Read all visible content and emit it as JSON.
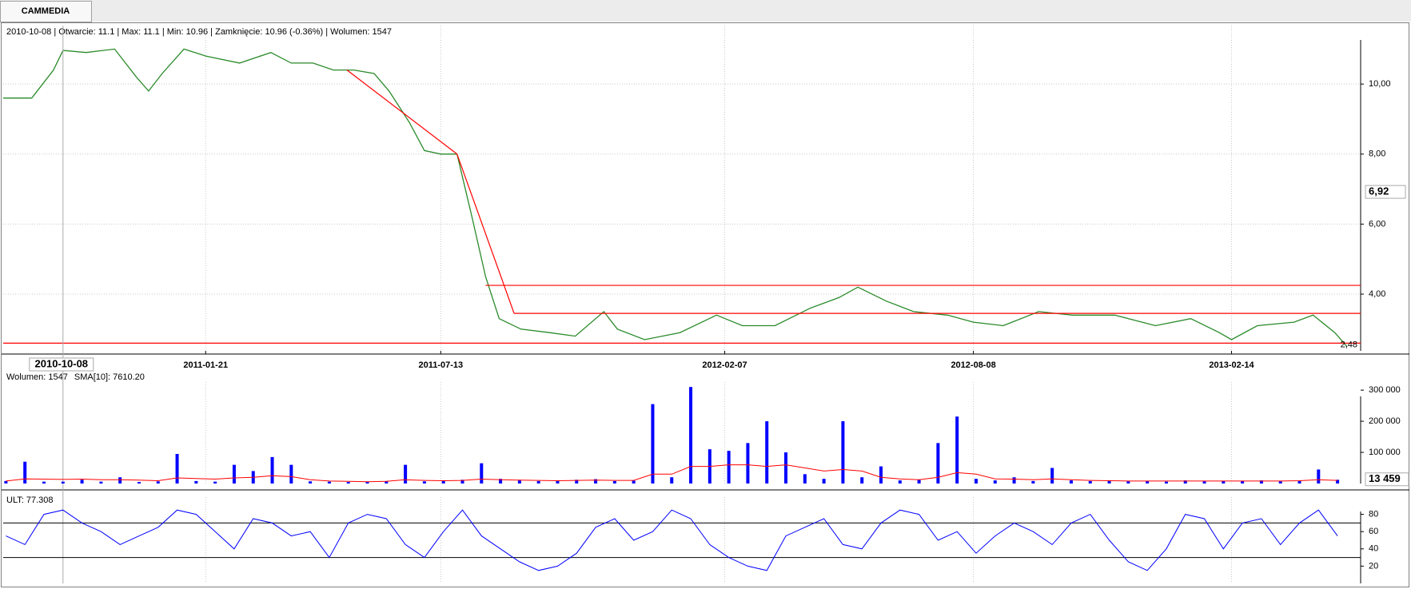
{
  "tab": "CAMMEDIA",
  "chart_data": [
    {
      "type": "line",
      "title": "2010-10-08 | Otwarcie: 11.1 | Max: 11.1 | Min: 10.96 | Zamknięcie: 10.96 (-0.36%)  | Wolumen: 1547",
      "color": "#2a8a2a",
      "x": [
        "2010-08-25",
        "2010-09-15",
        "2010-10-01",
        "2010-10-08",
        "2010-10-25",
        "2010-11-15",
        "2010-12-01",
        "2010-12-10",
        "2010-12-20",
        "2011-01-05",
        "2011-01-21",
        "2011-02-15",
        "2011-03-10",
        "2011-03-25",
        "2011-04-10",
        "2011-04-25",
        "2011-05-10",
        "2011-05-25",
        "2011-06-05",
        "2011-06-20",
        "2011-07-01",
        "2011-07-13",
        "2011-07-25",
        "2011-08-05",
        "2011-08-15",
        "2011-08-25",
        "2011-09-10",
        "2011-10-01",
        "2011-10-20",
        "2011-11-10",
        "2011-11-20",
        "2011-12-10",
        "2012-01-05",
        "2012-02-01",
        "2012-02-20",
        "2012-03-15",
        "2012-04-10",
        "2012-05-01",
        "2012-05-15",
        "2012-06-05",
        "2012-06-25",
        "2012-07-20",
        "2012-08-08",
        "2012-08-30",
        "2012-09-25",
        "2012-10-20",
        "2012-11-20",
        "2012-12-20",
        "2013-01-15",
        "2013-02-05",
        "2013-02-14",
        "2013-03-05",
        "2013-04-01",
        "2013-04-15",
        "2013-05-01",
        "2013-05-10"
      ],
      "values": [
        9.6,
        9.6,
        10.4,
        10.96,
        10.9,
        11.0,
        10.2,
        9.8,
        10.3,
        11.0,
        10.8,
        10.6,
        10.9,
        10.6,
        10.6,
        10.4,
        10.4,
        10.3,
        9.8,
        8.9,
        8.1,
        8.0,
        8.0,
        6.2,
        4.5,
        3.3,
        3.0,
        2.9,
        2.8,
        3.5,
        3.0,
        2.7,
        2.9,
        3.4,
        3.1,
        3.1,
        3.6,
        3.9,
        4.2,
        3.8,
        3.5,
        3.4,
        3.2,
        3.1,
        3.5,
        3.4,
        3.4,
        3.1,
        3.3,
        2.9,
        2.7,
        3.1,
        3.2,
        3.4,
        2.9,
        2.5
      ],
      "xlim": [
        "2010-08-25",
        "2013-05-20"
      ],
      "xticks": [
        "2011-01-21",
        "2011-07-13",
        "2012-02-07",
        "2012-08-08",
        "2013-02-14"
      ],
      "ylim": [
        2.38,
        11.67
      ],
      "yticks": [
        {
          "value": 4,
          "label": "4,00"
        },
        {
          "value": 6,
          "label": "6,00"
        },
        {
          "value": 8,
          "label": "8,00"
        },
        {
          "value": 10,
          "label": "10,00"
        }
      ],
      "grid": true,
      "lines": [
        {
          "x": [
            "2011-05-05",
            "2011-07-25"
          ],
          "y": [
            10.4,
            8.0
          ]
        },
        {
          "x": [
            "2011-07-25",
            "2011-09-05"
          ],
          "y": [
            8.0,
            3.45
          ]
        },
        {
          "x": [
            "2011-08-15",
            "2013-05-20"
          ],
          "y": [
            4.25,
            4.25
          ]
        },
        {
          "x": [
            "2011-09-05",
            "2013-05-20"
          ],
          "y": [
            3.45,
            3.45
          ]
        },
        {
          "x": [
            "2010-08-25",
            "2013-05-20"
          ],
          "y": [
            2.6,
            2.6
          ]
        }
      ],
      "line_color": "#ff0000",
      "cursor_x": "2010-10-08",
      "cursor_y": {
        "value": 6.92,
        "label": "6,92"
      },
      "last": {
        "value": 2.48,
        "label": "2,48"
      }
    },
    {
      "type": "bar",
      "x": [
        "2010-08-27",
        "2010-09-10",
        "2010-09-24",
        "2010-10-08",
        "2010-10-22",
        "2010-11-05",
        "2010-11-19",
        "2010-12-03",
        "2010-12-17",
        "2010-12-31",
        "2011-01-14",
        "2011-01-28",
        "2011-02-11",
        "2011-02-25",
        "2011-03-11",
        "2011-03-25",
        "2011-04-08",
        "2011-04-22",
        "2011-05-06",
        "2011-05-20",
        "2011-06-03",
        "2011-06-17",
        "2011-07-01",
        "2011-07-15",
        "2011-07-29",
        "2011-08-12",
        "2011-08-26",
        "2011-09-09",
        "2011-09-23",
        "2011-10-07",
        "2011-10-21",
        "2011-11-04",
        "2011-11-18",
        "2011-12-02",
        "2011-12-16",
        "2011-12-30",
        "2012-01-13",
        "2012-01-27",
        "2012-02-10",
        "2012-02-24",
        "2012-03-09",
        "2012-03-23",
        "2012-04-06",
        "2012-04-20",
        "2012-05-04",
        "2012-05-18",
        "2012-06-01",
        "2012-06-15",
        "2012-06-29",
        "2012-07-13",
        "2012-07-27",
        "2012-08-10",
        "2012-08-24",
        "2012-09-07",
        "2012-09-21",
        "2012-10-05",
        "2012-10-19",
        "2012-11-02",
        "2012-11-16",
        "2012-11-30",
        "2012-12-14",
        "2012-12-28",
        "2013-01-11",
        "2013-01-25",
        "2013-02-08",
        "2013-02-22",
        "2013-03-08",
        "2013-03-22",
        "2013-04-05",
        "2013-04-19",
        "2013-05-03"
      ],
      "series": [
        {
          "name": "Wolumen: 1547",
          "color": "#0000ff",
          "values": [
            8000,
            70000,
            6000,
            6000,
            12000,
            6000,
            20000,
            5000,
            7000,
            95000,
            8000,
            6000,
            60000,
            40000,
            85000,
            60000,
            7000,
            6000,
            5000,
            6000,
            8000,
            60000,
            7000,
            9000,
            12000,
            65000,
            15000,
            10000,
            8000,
            9000,
            12000,
            14000,
            8000,
            9000,
            255000,
            20000,
            310000,
            110000,
            105000,
            130000,
            200000,
            100000,
            30000,
            15000,
            200000,
            20000,
            55000,
            10000,
            12000,
            130000,
            215000,
            15000,
            10000,
            20000,
            8000,
            50000,
            10000,
            8000,
            9000,
            7000,
            8000,
            6000,
            10000,
            7000,
            9000,
            8000,
            10000,
            7000,
            8000,
            45000,
            12000
          ]
        },
        {
          "name": "SMA[10]: 7610.20",
          "color": "#ff0000",
          "type": "line",
          "values": [
            8000,
            15000,
            14000,
            13000,
            14000,
            12000,
            12000,
            11000,
            9000,
            18000,
            16000,
            14000,
            18000,
            20000,
            25000,
            22000,
            12000,
            8000,
            7000,
            6000,
            7000,
            12000,
            10000,
            9000,
            10000,
            14000,
            12000,
            11000,
            10000,
            9000,
            10000,
            11000,
            10000,
            10000,
            30000,
            30000,
            55000,
            55000,
            60000,
            60000,
            55000,
            60000,
            50000,
            40000,
            45000,
            40000,
            20000,
            15000,
            12000,
            20000,
            35000,
            30000,
            15000,
            14000,
            12000,
            15000,
            12000,
            10000,
            9000,
            8000,
            8000,
            8000,
            8000,
            8000,
            8000,
            8000,
            8000,
            8000,
            9000,
            12000,
            10000
          ]
        }
      ],
      "xlim": [
        "2010-08-25",
        "2013-05-20"
      ],
      "ylim": [
        0,
        326000
      ],
      "yticks": [
        {
          "value": 100000,
          "label": "100 000"
        },
        {
          "value": 200000,
          "label": "200 000"
        },
        {
          "value": 300000,
          "label": "300 000"
        }
      ],
      "last": {
        "value": 13459,
        "label": "13 459"
      }
    },
    {
      "type": "line",
      "x": [
        "2010-08-27",
        "2010-09-10",
        "2010-09-24",
        "2010-10-08",
        "2010-10-22",
        "2010-11-05",
        "2010-11-19",
        "2010-12-03",
        "2010-12-17",
        "2010-12-31",
        "2011-01-14",
        "2011-01-28",
        "2011-02-11",
        "2011-02-25",
        "2011-03-11",
        "2011-03-25",
        "2011-04-08",
        "2011-04-22",
        "2011-05-06",
        "2011-05-20",
        "2011-06-03",
        "2011-06-17",
        "2011-07-01",
        "2011-07-15",
        "2011-07-29",
        "2011-08-12",
        "2011-08-26",
        "2011-09-09",
        "2011-09-23",
        "2011-10-07",
        "2011-10-21",
        "2011-11-04",
        "2011-11-18",
        "2011-12-02",
        "2011-12-16",
        "2011-12-30",
        "2012-01-13",
        "2012-01-27",
        "2012-02-10",
        "2012-02-24",
        "2012-03-09",
        "2012-03-23",
        "2012-04-06",
        "2012-04-20",
        "2012-05-04",
        "2012-05-18",
        "2012-06-01",
        "2012-06-15",
        "2012-06-29",
        "2012-07-13",
        "2012-07-27",
        "2012-08-10",
        "2012-08-24",
        "2012-09-07",
        "2012-09-21",
        "2012-10-05",
        "2012-10-19",
        "2012-11-02",
        "2012-11-16",
        "2012-11-30",
        "2012-12-14",
        "2012-12-28",
        "2013-01-11",
        "2013-01-25",
        "2013-02-08",
        "2013-02-22",
        "2013-03-08",
        "2013-03-22",
        "2013-04-05",
        "2013-04-19",
        "2013-05-03"
      ],
      "series": [
        {
          "name": "ULT: 77.308",
          "color": "#0000ff",
          "values": [
            55,
            45,
            80,
            85,
            70,
            60,
            45,
            55,
            65,
            85,
            80,
            60,
            40,
            75,
            70,
            55,
            60,
            30,
            70,
            80,
            75,
            45,
            30,
            60,
            85,
            55,
            40,
            25,
            15,
            20,
            35,
            65,
            75,
            50,
            60,
            85,
            75,
            45,
            30,
            20,
            15,
            55,
            65,
            75,
            45,
            40,
            70,
            85,
            80,
            50,
            60,
            35,
            55,
            70,
            60,
            45,
            70,
            80,
            50,
            25,
            15,
            40,
            80,
            75,
            40,
            70,
            75,
            45,
            70,
            85,
            55
          ]
        }
      ],
      "xlim": [
        "2010-08-25",
        "2013-05-20"
      ],
      "ylim": [
        0,
        100
      ],
      "yticks": [
        20,
        40,
        60,
        80
      ],
      "levels": [
        30,
        70
      ]
    }
  ]
}
